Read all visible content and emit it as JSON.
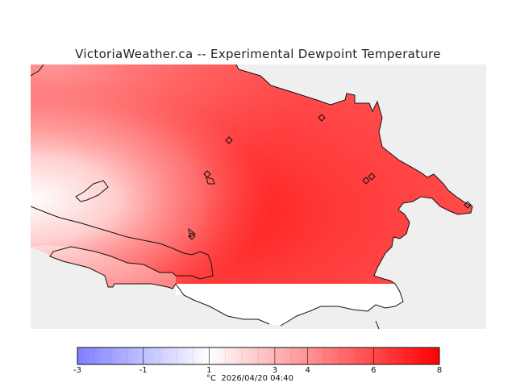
{
  "title": "VictoriaWeather.ca -- Experimental Dewpoint Temperature",
  "colorbar": {
    "ticks": [
      "-3",
      "-1",
      "1",
      "3",
      "4",
      "6",
      "8"
    ],
    "tick_values": [
      -3,
      -1,
      1,
      3,
      4,
      6,
      8
    ],
    "min": -3,
    "max": 8,
    "unit": "°C",
    "timestamp": "2026/04/20 04:40"
  },
  "colors": {
    "cold": "#7f7fff",
    "neutral": "#ffffff",
    "warm": "#ff0000",
    "background": "#efefef"
  }
}
